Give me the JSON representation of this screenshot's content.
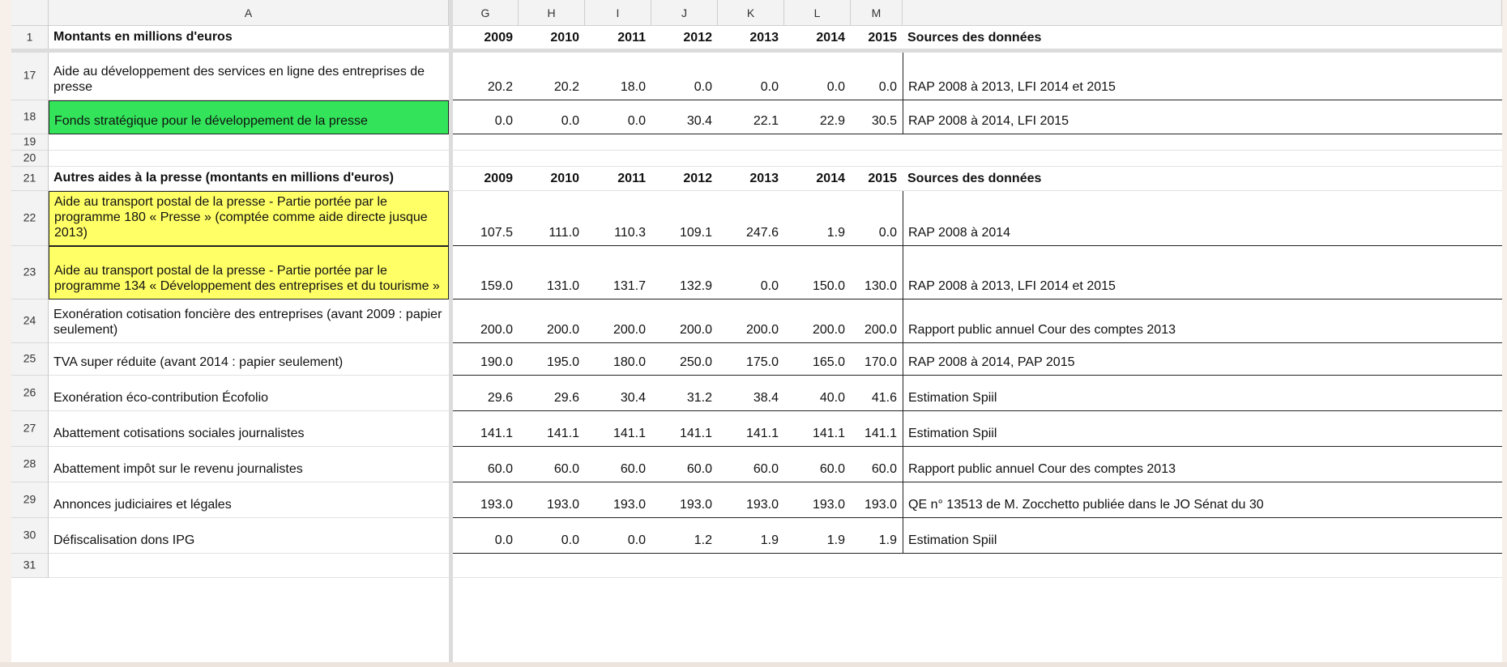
{
  "columns": [
    "A",
    "G",
    "H",
    "I",
    "J",
    "K",
    "L",
    "M"
  ],
  "rows": [
    {
      "num": "1",
      "label": "Montants en millions d'euros",
      "values": [
        "2009",
        "2010",
        "2011",
        "2012",
        "2013",
        "2014",
        "2015"
      ],
      "source": "Sources des données",
      "bold": true,
      "fill": "",
      "h": 30
    },
    {
      "num": "17",
      "label": "Aide au développement des services en ligne des entreprises de presse",
      "values": [
        "20.2",
        "20.2",
        "18.0",
        "0.0",
        "0.0",
        "0.0",
        "0.0"
      ],
      "source": "RAP 2008 à 2013, LFI 2014 et 2015",
      "bold": false,
      "fill": "",
      "h": 59
    },
    {
      "num": "18",
      "label": "Fonds stratégique pour le développement de la presse",
      "values": [
        "0.0",
        "0.0",
        "0.0",
        "30.4",
        "22.1",
        "22.9",
        "30.5"
      ],
      "source": "RAP 2008 à 2014, LFI 2015",
      "bold": false,
      "fill": "#33e35a",
      "h": 42
    },
    {
      "num": "19",
      "label": "",
      "values": [
        "",
        "",
        "",
        "",
        "",
        "",
        ""
      ],
      "source": "",
      "bold": false,
      "fill": "",
      "h": 20
    },
    {
      "num": "20",
      "label": "",
      "values": [
        "",
        "",
        "",
        "",
        "",
        "",
        ""
      ],
      "source": "",
      "bold": false,
      "fill": "",
      "h": 20
    },
    {
      "num": "21",
      "label": "Autres aides à la presse (montants en millions d'euros)",
      "values": [
        "2009",
        "2010",
        "2011",
        "2012",
        "2013",
        "2014",
        "2015"
      ],
      "source": "Sources des données",
      "bold": true,
      "fill": "",
      "h": 30
    },
    {
      "num": "22",
      "label": "Aide au transport postal de la presse - Partie portée par le programme 180 « Presse » (comptée comme aide directe jusque 2013)",
      "values": [
        "107.5",
        "111.0",
        "110.3",
        "109.1",
        "247.6",
        "1.9",
        "0.0"
      ],
      "source": "RAP 2008 à 2014",
      "bold": false,
      "fill": "#ffff66",
      "h": 68
    },
    {
      "num": "23",
      "label": "Aide au transport postal de la presse - Partie portée par le programme 134 « Développement des entreprises et du tourisme »",
      "values": [
        "159.0",
        "131.0",
        "131.7",
        "132.9",
        "0.0",
        "150.0",
        "130.0"
      ],
      "source": "RAP 2008 à 2013, LFI 2014 et 2015",
      "bold": false,
      "fill": "#ffff66",
      "h": 66
    },
    {
      "num": "24",
      "label": "Exonération cotisation foncière des entreprises (avant 2009 : papier seulement)",
      "values": [
        "200.0",
        "200.0",
        "200.0",
        "200.0",
        "200.0",
        "200.0",
        "200.0"
      ],
      "source": "Rapport public annuel Cour des comptes 2013",
      "bold": false,
      "fill": "",
      "h": 54
    },
    {
      "num": "25",
      "label": "TVA super réduite (avant 2014 : papier seulement)",
      "values": [
        "190.0",
        "195.0",
        "180.0",
        "250.0",
        "175.0",
        "165.0",
        "170.0"
      ],
      "source": "RAP 2008 à 2014, PAP 2015",
      "bold": false,
      "fill": "",
      "h": 40
    },
    {
      "num": "26",
      "label": "Exonération éco-contribution Écofolio",
      "values": [
        "29.6",
        "29.6",
        "30.4",
        "31.2",
        "38.4",
        "40.0",
        "41.6"
      ],
      "source": "Estimation Spiil",
      "bold": false,
      "fill": "",
      "h": 44
    },
    {
      "num": "27",
      "label": "Abattement cotisations sociales journalistes",
      "values": [
        "141.1",
        "141.1",
        "141.1",
        "141.1",
        "141.1",
        "141.1",
        "141.1"
      ],
      "source": "Estimation Spiil",
      "bold": false,
      "fill": "",
      "h": 44
    },
    {
      "num": "28",
      "label": "Abattement impôt sur le revenu journalistes",
      "values": [
        "60.0",
        "60.0",
        "60.0",
        "60.0",
        "60.0",
        "60.0",
        "60.0"
      ],
      "source": "Rapport public annuel Cour des comptes 2013",
      "bold": false,
      "fill": "",
      "h": 44
    },
    {
      "num": "29",
      "label": "Annonces judiciaires et légales",
      "values": [
        "193.0",
        "193.0",
        "193.0",
        "193.0",
        "193.0",
        "193.0",
        "193.0"
      ],
      "source": "QE n° 13513 de M. Zocchetto publiée dans le JO Sénat du 30",
      "bold": false,
      "fill": "",
      "h": 44
    },
    {
      "num": "30",
      "label": "Défiscalisation dons IPG",
      "values": [
        "0.0",
        "0.0",
        "0.0",
        "1.2",
        "1.9",
        "1.9",
        "1.9"
      ],
      "source": "Estimation Spiil",
      "bold": false,
      "fill": "",
      "h": 44
    },
    {
      "num": "31",
      "label": "",
      "values": [
        "",
        "",
        "",
        "",
        "",
        "",
        ""
      ],
      "source": "",
      "bold": false,
      "fill": "",
      "h": 30
    }
  ]
}
